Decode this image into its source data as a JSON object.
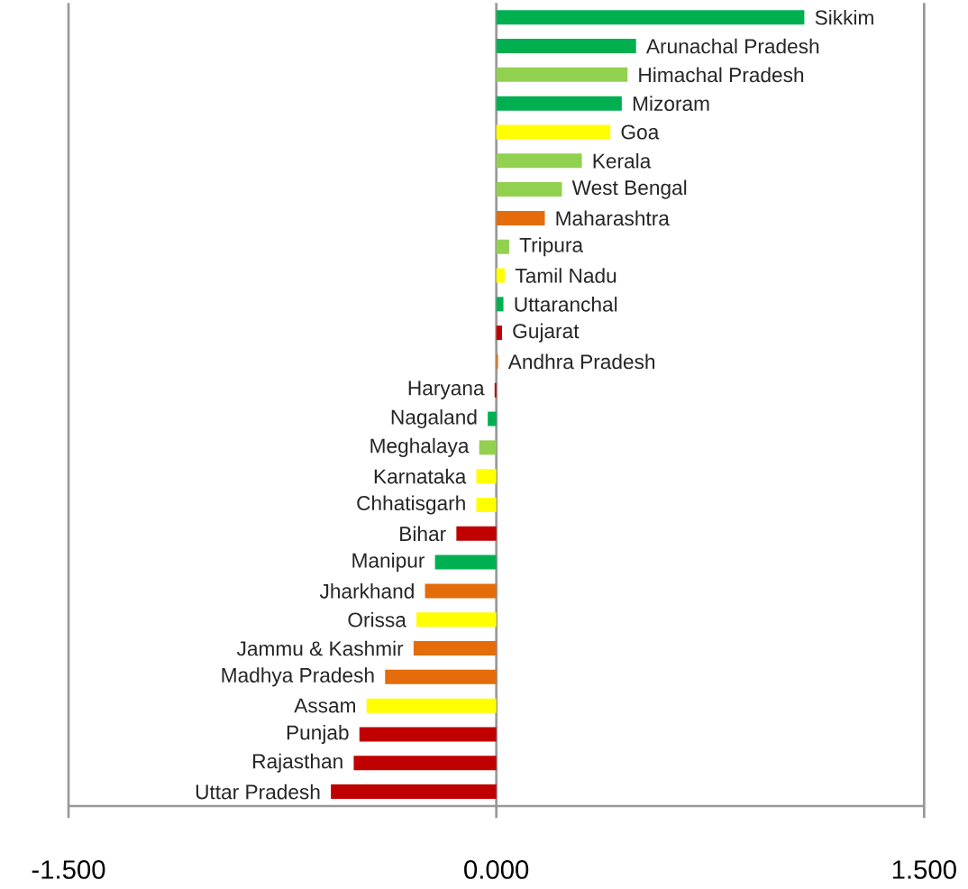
{
  "chart_data": {
    "type": "bar",
    "orientation": "horizontal",
    "categories": [
      "Sikkim",
      "Arunachal Pradesh",
      "Himachal Pradesh",
      "Mizoram",
      "Goa",
      "Kerala",
      "West Bengal",
      "Maharashtra",
      "Tripura",
      "Tamil Nadu",
      "Uttaranchal",
      "Gujarat",
      "Andhra Pradesh",
      "Haryana",
      "Nagaland",
      "Meghalaya",
      "Karnataka",
      "Chhatisgarh",
      "Bihar",
      "Manipur",
      "Jharkhand",
      "Orissa",
      "Jammu & Kashmir",
      "Madhya Pradesh",
      "Assam",
      "Punjab",
      "Rajasthan",
      "Uttar Pradesh"
    ],
    "values": [
      1.08,
      0.49,
      0.46,
      0.44,
      0.4,
      0.3,
      0.23,
      0.17,
      0.045,
      0.03,
      0.025,
      0.02,
      0.006,
      -0.006,
      -0.03,
      -0.06,
      -0.07,
      -0.07,
      -0.14,
      -0.215,
      -0.25,
      -0.28,
      -0.29,
      -0.39,
      -0.455,
      -0.48,
      -0.5,
      -0.58
    ],
    "colors": [
      "#00b050",
      "#00b050",
      "#92d050",
      "#00b050",
      "#ffff00",
      "#92d050",
      "#92d050",
      "#e46c0a",
      "#92d050",
      "#ffff00",
      "#00b050",
      "#c00000",
      "#e46c0a",
      "#c00000",
      "#00b050",
      "#92d050",
      "#ffff00",
      "#ffff00",
      "#c00000",
      "#00b050",
      "#e46c0a",
      "#ffff00",
      "#e46c0a",
      "#e46c0a",
      "#ffff00",
      "#c00000",
      "#c00000",
      "#c00000"
    ],
    "xlim": [
      -1.5,
      1.5
    ],
    "xticks": [
      {
        "value": -1.5,
        "label": "-1.500"
      },
      {
        "value": 0,
        "label": "0.000"
      },
      {
        "value": 1.5,
        "label": "1.500"
      }
    ],
    "grid": "x"
  }
}
